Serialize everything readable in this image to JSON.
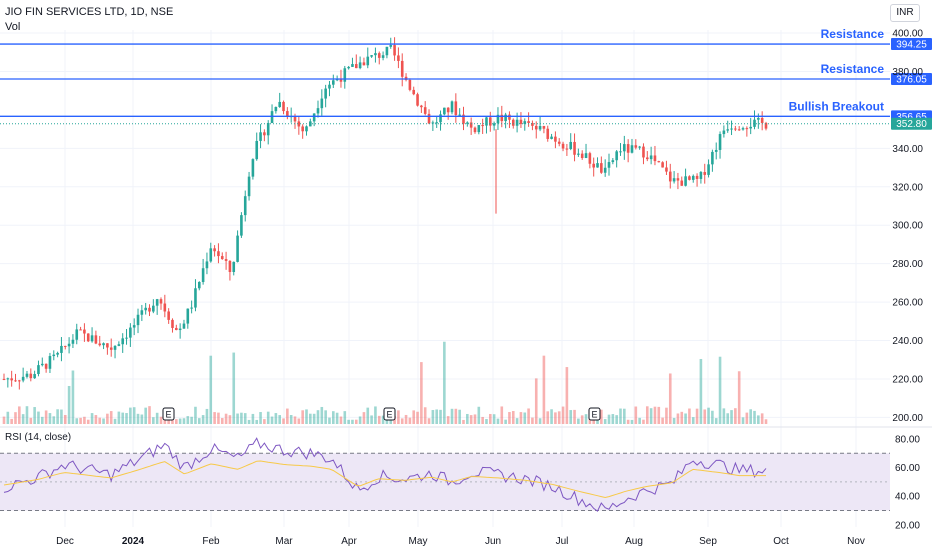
{
  "header": {
    "symbol_line": "JIO FIN SERVICES LTD, 1D, NSE",
    "volume_label": "Vol",
    "currency_button": "INR"
  },
  "rsi": {
    "label": "RSI (14, close)"
  },
  "colors": {
    "up": "#26a69a",
    "down": "#ef5350",
    "level_line": "#2962ff",
    "rsi_line": "#7e57c2",
    "rsi_ma": "#f7c948",
    "rsi_band": "#ede7f6"
  },
  "chart_data": {
    "type": "candlestick",
    "series": [
      {
        "name": "JIO FIN SERVICES LTD"
      }
    ],
    "x_labels": [
      "Dec",
      "2024",
      "Feb",
      "Mar",
      "Apr",
      "May",
      "Jun",
      "Jul",
      "Aug",
      "Sep",
      "Oct",
      "Nov"
    ],
    "price_axis": {
      "ticks": [
        "400.00",
        "380.00",
        "340.00",
        "320.00",
        "300.00",
        "280.00",
        "260.00",
        "240.00",
        "220.00",
        "200.00"
      ],
      "ylim": [
        198,
        402
      ]
    },
    "rsi_axis": {
      "ticks": [
        "80.00",
        "60.00",
        "40.00",
        "20.00"
      ],
      "ylim": [
        18,
        83
      ],
      "bands": [
        30,
        50,
        70
      ]
    },
    "levels": [
      {
        "label": "Resistance",
        "value": "394.25"
      },
      {
        "label": "Resistance",
        "value": "376.05"
      },
      {
        "label": "Bullish Breakout",
        "value": "356.65"
      }
    ],
    "last_price": "352.80",
    "earnings_markers": [
      "E",
      "E",
      "E"
    ],
    "path": [
      [
        0,
        220
      ],
      [
        0.04,
        222
      ],
      [
        0.08,
        232
      ],
      [
        0.11,
        244
      ],
      [
        0.13,
        241
      ],
      [
        0.16,
        236
      ],
      [
        0.19,
        246
      ],
      [
        0.23,
        263
      ],
      [
        0.26,
        244
      ],
      [
        0.28,
        258
      ],
      [
        0.31,
        290
      ],
      [
        0.34,
        275
      ],
      [
        0.37,
        335
      ],
      [
        0.41,
        365
      ],
      [
        0.45,
        348
      ],
      [
        0.48,
        372
      ],
      [
        0.54,
        386
      ],
      [
        0.58,
        391
      ],
      [
        0.61,
        370
      ],
      [
        0.64,
        352
      ],
      [
        0.67,
        362
      ],
      [
        0.7,
        350
      ],
      [
        0.74,
        356
      ],
      [
        0.8,
        350
      ],
      [
        0.86,
        338
      ],
      [
        0.9,
        327
      ],
      [
        0.92,
        340
      ],
      [
        0.96,
        338
      ],
      [
        1.0,
        323
      ],
      [
        1.04,
        323
      ],
      [
        1.08,
        352
      ],
      [
        1.11,
        353
      ],
      [
        1.14,
        352.8
      ]
    ],
    "rsi_path": [
      [
        0,
        46
      ],
      [
        0.05,
        53
      ],
      [
        0.09,
        62
      ],
      [
        0.13,
        58
      ],
      [
        0.16,
        55
      ],
      [
        0.2,
        65
      ],
      [
        0.24,
        76
      ],
      [
        0.27,
        60
      ],
      [
        0.31,
        73
      ],
      [
        0.35,
        66
      ],
      [
        0.38,
        77
      ],
      [
        0.42,
        72
      ],
      [
        0.46,
        70
      ],
      [
        0.49,
        66
      ],
      [
        0.53,
        44
      ],
      [
        0.56,
        54
      ],
      [
        0.6,
        52
      ],
      [
        0.64,
        56
      ],
      [
        0.67,
        50
      ],
      [
        0.7,
        57
      ],
      [
        0.74,
        55
      ],
      [
        0.78,
        52
      ],
      [
        0.82,
        47
      ],
      [
        0.86,
        38
      ],
      [
        0.9,
        30
      ],
      [
        0.93,
        38
      ],
      [
        0.96,
        44
      ],
      [
        1.0,
        49
      ],
      [
        1.03,
        66
      ],
      [
        1.07,
        62
      ],
      [
        1.1,
        58
      ],
      [
        1.14,
        58
      ]
    ]
  }
}
